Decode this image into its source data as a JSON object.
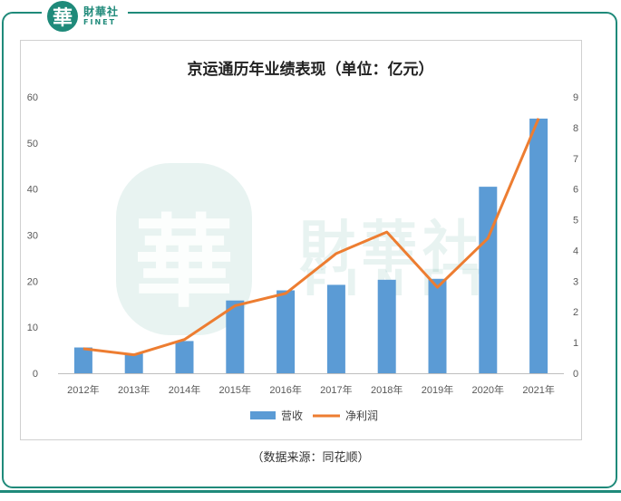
{
  "brand": {
    "seal_char": "華",
    "name_cn": "財華社",
    "name_en": "FINET"
  },
  "source_note": "（数据来源：同花顺）",
  "chart_data": {
    "type": "bar",
    "title": "京运通历年业绩表现（单位：亿元）",
    "categories": [
      "2012年",
      "2013年",
      "2014年",
      "2015年",
      "2016年",
      "2017年",
      "2018年",
      "2019年",
      "2020年",
      "2021年"
    ],
    "series": [
      {
        "name": "营收",
        "type": "bar",
        "axis": "left",
        "color": "#5b9bd5",
        "values": [
          5.6,
          4.3,
          7.0,
          15.8,
          18.0,
          19.2,
          20.3,
          20.5,
          40.5,
          55.3
        ]
      },
      {
        "name": "净利润",
        "type": "line",
        "axis": "right",
        "color": "#ed7d31",
        "values": [
          0.8,
          0.6,
          1.1,
          2.2,
          2.6,
          3.9,
          4.6,
          2.8,
          4.4,
          8.3
        ]
      }
    ],
    "y_left": {
      "min": 0,
      "max": 60,
      "ticks": [
        0,
        10,
        20,
        30,
        40,
        50,
        60
      ]
    },
    "y_right": {
      "min": 0,
      "max": 9,
      "ticks": [
        0,
        1,
        2,
        3,
        4,
        5,
        6,
        7,
        8,
        9
      ]
    },
    "grid": false,
    "legend_position": "bottom"
  }
}
